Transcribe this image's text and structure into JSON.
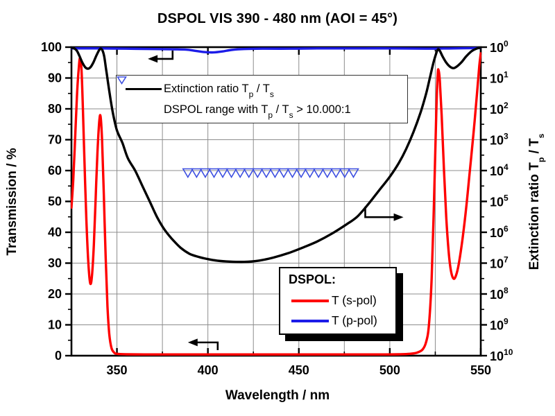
{
  "title": "DSPOL VIS 390 - 480 nm (AOI = 45°)",
  "colors": {
    "s_pol": "#ff0000",
    "p_pol": "#1c1ce8",
    "extinction": "#000000",
    "triangle_marker": "#3d4fe0",
    "grid": "#8c8c8c",
    "frame": "#000000",
    "background": "#ffffff"
  },
  "axes": {
    "x": {
      "label": "Wavelength / nm",
      "min": 325,
      "max": 550,
      "major_ticks": [
        350,
        400,
        450,
        500,
        550
      ],
      "minor_ticks": [
        375,
        425,
        475,
        525
      ],
      "grid_step_nm": 25
    },
    "y_left": {
      "label": "Transmission / %",
      "min": 0,
      "max": 100,
      "major_ticks": [
        0,
        10,
        20,
        30,
        40,
        50,
        60,
        70,
        80,
        90,
        100
      ],
      "minor_step": 5,
      "grid_step": 10
    },
    "y_right": {
      "label_segments": [
        {
          "t": "Extinction ratio T"
        },
        {
          "t": "p",
          "sub": true
        },
        {
          "t": " / T"
        },
        {
          "t": "s",
          "sub": true
        }
      ],
      "scale": "log10_inverted_down",
      "exponents": [
        0,
        1,
        2,
        3,
        4,
        5,
        6,
        7,
        8,
        9,
        10
      ]
    }
  },
  "legend_top": {
    "rows": [
      {
        "marker": "black-line",
        "segments": [
          {
            "t": "Extinction ratio T"
          },
          {
            "t": "p",
            "sub": true
          },
          {
            "t": " / T"
          },
          {
            "t": "s",
            "sub": true
          }
        ]
      },
      {
        "marker": "open-blue-triangle-down",
        "segments": [
          {
            "t": "DSPOL range with T"
          },
          {
            "t": "p",
            "sub": true
          },
          {
            "t": " / T"
          },
          {
            "t": "s",
            "sub": true
          },
          {
            "t": " > 10.000:1"
          }
        ]
      }
    ]
  },
  "legend_bottom": {
    "title": "DSPOL:",
    "rows": [
      {
        "label": "T (s-pol)",
        "color": "#ff0000"
      },
      {
        "label": "T (p-pol)",
        "color": "#1c1ce8"
      }
    ]
  },
  "arrows": [
    {
      "name": "p-pol-to-left-axis-arrow",
      "dir": "left",
      "stub": [
        380.6,
        98.9
      ],
      "corner": [
        380.6,
        96.2
      ],
      "tip": [
        367,
        96.2
      ]
    },
    {
      "name": "extinction-to-right-axis-arrow",
      "dir": "right",
      "stub": [
        486.5,
        48.3
      ],
      "corner": [
        486.5,
        44.9
      ],
      "tip": [
        507.5,
        44.9
      ]
    },
    {
      "name": "s-pol-to-left-axis-arrow",
      "dir": "left",
      "stub": [
        405.4,
        1.8
      ],
      "corner": [
        405.4,
        4.3
      ],
      "tip": [
        389,
        4.3
      ]
    }
  ],
  "chart_data": {
    "type": "line",
    "title": "DSPOL VIS 390 - 480 nm (AOI = 45°)",
    "xlabel": "Wavelength / nm",
    "ylabel_left": "Transmission / %",
    "ylabel_right": "Extinction ratio Tp / Ts",
    "x_range_nm": [
      325,
      550
    ],
    "y_left_range_percent": [
      0,
      100
    ],
    "y_right_range_log10": [
      0,
      10
    ],
    "grid": true,
    "series": [
      {
        "name": "T (s-pol)",
        "axis": "left",
        "color": "#ff0000",
        "unit": "percent",
        "points": [
          [
            325,
            48
          ],
          [
            326,
            57
          ],
          [
            327,
            70
          ],
          [
            328,
            84
          ],
          [
            329,
            93
          ],
          [
            329.7,
            96.5
          ],
          [
            330.5,
            93
          ],
          [
            331.3,
            80
          ],
          [
            332.2,
            62
          ],
          [
            333.2,
            44
          ],
          [
            334.2,
            31
          ],
          [
            335.3,
            23.5
          ],
          [
            336.3,
            26
          ],
          [
            337.3,
            36
          ],
          [
            338.3,
            51
          ],
          [
            339.3,
            66
          ],
          [
            340.3,
            76
          ],
          [
            341,
            77.5
          ],
          [
            341.8,
            70
          ],
          [
            342.8,
            52
          ],
          [
            343.8,
            32
          ],
          [
            344.8,
            16
          ],
          [
            345.8,
            7
          ],
          [
            347,
            2.5
          ],
          [
            348.5,
            1
          ],
          [
            350,
            0.6
          ],
          [
            355,
            0.45
          ],
          [
            365,
            0.4
          ],
          [
            380,
            0.4
          ],
          [
            400,
            0.4
          ],
          [
            420,
            0.4
          ],
          [
            440,
            0.4
          ],
          [
            460,
            0.4
          ],
          [
            480,
            0.4
          ],
          [
            495,
            0.4
          ],
          [
            505,
            0.45
          ],
          [
            511,
            0.6
          ],
          [
            515,
            1
          ],
          [
            518,
            2
          ],
          [
            520,
            4.5
          ],
          [
            521.5,
            10
          ],
          [
            523,
            25
          ],
          [
            524.3,
            50
          ],
          [
            525.5,
            78
          ],
          [
            526.3,
            91
          ],
          [
            526.8,
            92.5
          ],
          [
            527.5,
            89
          ],
          [
            528.5,
            78
          ],
          [
            529.8,
            60
          ],
          [
            531,
            45
          ],
          [
            532.3,
            34
          ],
          [
            533.6,
            27.5
          ],
          [
            535,
            25
          ],
          [
            536.4,
            26
          ],
          [
            538,
            30
          ],
          [
            540,
            38
          ],
          [
            542,
            48
          ],
          [
            544,
            60
          ],
          [
            546,
            72
          ],
          [
            547.8,
            84
          ],
          [
            549.2,
            94
          ],
          [
            550,
            98
          ]
        ]
      },
      {
        "name": "T (p-pol)",
        "axis": "left",
        "color": "#1c1ce8",
        "unit": "percent",
        "points": [
          [
            325,
            99.6
          ],
          [
            340,
            99.6
          ],
          [
            355,
            99.5
          ],
          [
            370,
            99.4
          ],
          [
            380,
            99.3
          ],
          [
            388,
            99.2
          ],
          [
            393,
            98.8
          ],
          [
            398,
            98.4
          ],
          [
            403,
            98.3
          ],
          [
            408,
            98.6
          ],
          [
            413,
            99.1
          ],
          [
            420,
            99.4
          ],
          [
            430,
            99.5
          ],
          [
            445,
            99.5
          ],
          [
            460,
            99.6
          ],
          [
            480,
            99.6
          ],
          [
            500,
            99.6
          ],
          [
            520,
            99.5
          ],
          [
            535,
            99.6
          ],
          [
            550,
            99.7
          ]
        ]
      },
      {
        "name": "Extinction ratio Tp / Ts",
        "axis": "right",
        "color": "#000000",
        "unit": "log10",
        "points": [
          [
            325,
            0.02
          ],
          [
            326.5,
            0.04
          ],
          [
            328,
            0.12
          ],
          [
            329.5,
            0.3
          ],
          [
            331,
            0.5
          ],
          [
            332.5,
            0.65
          ],
          [
            334,
            0.7
          ],
          [
            335.5,
            0.65
          ],
          [
            337,
            0.5
          ],
          [
            338.5,
            0.3
          ],
          [
            340,
            0.12
          ],
          [
            341,
            0.05
          ],
          [
            342,
            0.1
          ],
          [
            343,
            0.3
          ],
          [
            344,
            0.7
          ],
          [
            345,
            1.1
          ],
          [
            346.5,
            1.7
          ],
          [
            348,
            2.2
          ],
          [
            350,
            2.7
          ],
          [
            353,
            3.1
          ],
          [
            356,
            3.6
          ],
          [
            360,
            4.0
          ],
          [
            364,
            4.5
          ],
          [
            368,
            5.0
          ],
          [
            372,
            5.5
          ],
          [
            376,
            5.9
          ],
          [
            380,
            6.2
          ],
          [
            385,
            6.5
          ],
          [
            390,
            6.7
          ],
          [
            395,
            6.8
          ],
          [
            400,
            6.87
          ],
          [
            405,
            6.92
          ],
          [
            412,
            6.95
          ],
          [
            420,
            6.96
          ],
          [
            428,
            6.92
          ],
          [
            436,
            6.82
          ],
          [
            444,
            6.68
          ],
          [
            452,
            6.5
          ],
          [
            460,
            6.3
          ],
          [
            468,
            6.05
          ],
          [
            476,
            5.75
          ],
          [
            482,
            5.5
          ],
          [
            488,
            5.1
          ],
          [
            494,
            4.65
          ],
          [
            500,
            4.2
          ],
          [
            505,
            3.75
          ],
          [
            509,
            3.3
          ],
          [
            513,
            2.75
          ],
          [
            517,
            2.1
          ],
          [
            520,
            1.5
          ],
          [
            522,
            1.0
          ],
          [
            524,
            0.5
          ],
          [
            525.5,
            0.2
          ],
          [
            526.5,
            0.07
          ],
          [
            527.5,
            0.12
          ],
          [
            529,
            0.3
          ],
          [
            531,
            0.5
          ],
          [
            533,
            0.63
          ],
          [
            535,
            0.68
          ],
          [
            537,
            0.62
          ],
          [
            539.5,
            0.48
          ],
          [
            542,
            0.3
          ],
          [
            545,
            0.13
          ],
          [
            548,
            0.04
          ],
          [
            550,
            0.02
          ]
        ]
      },
      {
        "name": "DSPOL range with Tp / Ts > 10.000:1",
        "type": "triangle_markers",
        "axis": "left",
        "color": "#3d4fe0",
        "y_percent": 60,
        "x_start_nm": 389,
        "x_end_nm": 480,
        "count": 20
      }
    ]
  }
}
